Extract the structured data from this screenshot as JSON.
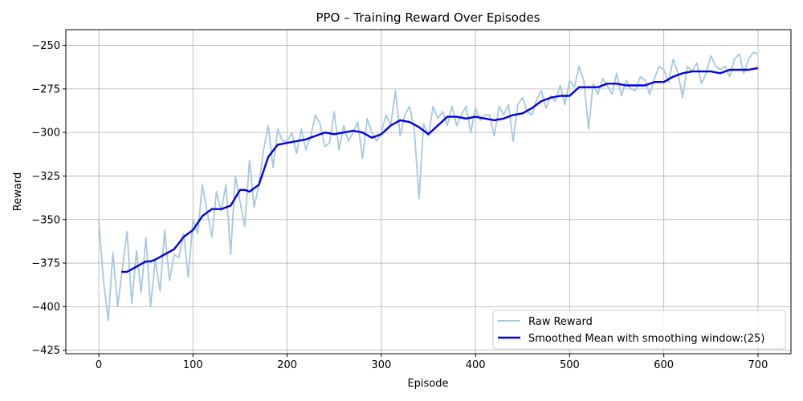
{
  "chart_data": {
    "type": "line",
    "title": "PPO – Training Reward Over Episodes",
    "xlabel": "Episode",
    "ylabel": "Reward",
    "xlim": [
      -35,
      735
    ],
    "ylim": [
      -427,
      -241
    ],
    "xticks": [
      0,
      100,
      200,
      300,
      400,
      500,
      600,
      700
    ],
    "yticks": [
      -425,
      -400,
      -375,
      -350,
      -325,
      -300,
      -275,
      -250
    ],
    "grid": true,
    "legend_position": "lower-right",
    "smoothing_window": 25,
    "series": [
      {
        "name": "Raw Reward",
        "color": "#a6c8e3",
        "x": [
          0,
          5,
          10,
          15,
          20,
          25,
          30,
          35,
          40,
          45,
          50,
          55,
          60,
          65,
          70,
          75,
          80,
          85,
          90,
          95,
          100,
          105,
          110,
          115,
          120,
          125,
          130,
          135,
          140,
          145,
          150,
          155,
          160,
          165,
          170,
          175,
          180,
          185,
          190,
          195,
          200,
          205,
          210,
          215,
          220,
          225,
          230,
          235,
          240,
          245,
          250,
          255,
          260,
          265,
          270,
          275,
          280,
          285,
          290,
          295,
          300,
          305,
          310,
          315,
          320,
          325,
          330,
          335,
          340,
          345,
          350,
          355,
          360,
          365,
          370,
          375,
          380,
          385,
          390,
          395,
          400,
          405,
          410,
          415,
          420,
          425,
          430,
          435,
          440,
          445,
          450,
          455,
          460,
          465,
          470,
          475,
          480,
          485,
          490,
          495,
          500,
          505,
          510,
          515,
          520,
          525,
          530,
          535,
          540,
          545,
          550,
          555,
          560,
          565,
          570,
          575,
          580,
          585,
          590,
          595,
          600,
          605,
          610,
          615,
          620,
          625,
          630,
          635,
          640,
          645,
          650,
          655,
          660,
          665,
          670,
          675,
          680,
          685,
          690,
          695,
          700
        ],
        "y": [
          -351,
          -385,
          -408,
          -369,
          -400,
          -378,
          -357,
          -398,
          -368,
          -392,
          -360,
          -400,
          -373,
          -391,
          -356,
          -385,
          -370,
          -372,
          -358,
          -383,
          -350,
          -358,
          -330,
          -345,
          -360,
          -334,
          -345,
          -330,
          -370,
          -325,
          -340,
          -354,
          -316,
          -343,
          -330,
          -310,
          -296,
          -320,
          -298,
          -305,
          -305,
          -300,
          -312,
          -298,
          -310,
          -302,
          -290,
          -295,
          -308,
          -306,
          -288,
          -310,
          -296,
          -305,
          -300,
          -294,
          -315,
          -292,
          -300,
          -305,
          -300,
          -290,
          -296,
          -276,
          -302,
          -290,
          -285,
          -298,
          -338,
          -295,
          -302,
          -285,
          -292,
          -288,
          -296,
          -285,
          -296,
          -290,
          -285,
          -300,
          -286,
          -293,
          -290,
          -290,
          -302,
          -285,
          -290,
          -284,
          -305,
          -284,
          -280,
          -288,
          -290,
          -281,
          -276,
          -286,
          -279,
          -282,
          -273,
          -284,
          -270,
          -274,
          -262,
          -270,
          -298,
          -272,
          -278,
          -269,
          -273,
          -278,
          -266,
          -279,
          -270,
          -275,
          -276,
          -268,
          -270,
          -278,
          -269,
          -262,
          -264,
          -271,
          -258,
          -266,
          -280,
          -262,
          -265,
          -260,
          -272,
          -266,
          -256,
          -262,
          -264,
          -262,
          -268,
          -258,
          -255,
          -266,
          -258,
          -254,
          -255
        ]
      },
      {
        "name": "Smoothed Mean with smoothing window:(25)",
        "color": "#0000ee",
        "x": [
          24,
          30,
          40,
          50,
          55,
          60,
          70,
          80,
          90,
          100,
          110,
          120,
          130,
          140,
          150,
          155,
          160,
          170,
          180,
          190,
          200,
          210,
          220,
          230,
          240,
          250,
          260,
          270,
          280,
          290,
          300,
          310,
          320,
          330,
          340,
          350,
          360,
          370,
          380,
          390,
          400,
          410,
          420,
          430,
          440,
          450,
          460,
          470,
          480,
          490,
          500,
          510,
          520,
          530,
          540,
          550,
          560,
          570,
          580,
          590,
          600,
          610,
          620,
          630,
          640,
          650,
          660,
          670,
          680,
          690,
          700
        ],
        "y": [
          -380,
          -380,
          -377,
          -374,
          -374,
          -373,
          -370,
          -367,
          -360,
          -356,
          -348,
          -344,
          -344,
          -342,
          -333,
          -333,
          -334,
          -330,
          -314,
          -307,
          -306,
          -305,
          -304,
          -302,
          -300,
          -301,
          -300,
          -299,
          -300,
          -303,
          -301,
          -296,
          -293,
          -294,
          -297,
          -301,
          -296,
          -291,
          -291,
          -292,
          -291,
          -292,
          -293,
          -292,
          -290,
          -289,
          -286,
          -282,
          -280,
          -279,
          -279,
          -274,
          -274,
          -274,
          -272,
          -272,
          -273,
          -273,
          -273,
          -271,
          -271,
          -268,
          -266,
          -265,
          -265,
          -265,
          -266,
          -264,
          -264,
          -264,
          -263
        ]
      }
    ]
  }
}
